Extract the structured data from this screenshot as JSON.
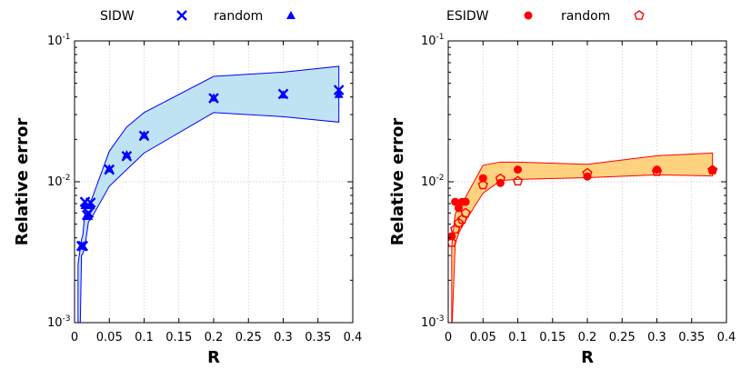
{
  "chart_data": [
    {
      "type": "scatter",
      "xlabel": "R",
      "ylabel": "Relative error",
      "xlim": [
        0,
        0.4
      ],
      "ylim": [
        0.001,
        0.1
      ],
      "yscale": "log",
      "grid": true,
      "legend_position": "top",
      "xticks": [
        "0",
        "0.05",
        "0.1",
        "0.15",
        "0.2",
        "0.25",
        "0.3",
        "0.35",
        "0.4"
      ],
      "yticks": [
        {
          "base": "10",
          "exp": "-3"
        },
        {
          "base": "10",
          "exp": "-2"
        },
        {
          "base": "10",
          "exp": "-1"
        }
      ],
      "colors": {
        "marker": "#0000ff",
        "band_fill": "#bfe3f3",
        "band_line": "#0000ff"
      },
      "series": [
        {
          "name": "SIDW",
          "marker": "x",
          "x": [
            0.01,
            0.012,
            0.015,
            0.018,
            0.02,
            0.023,
            0.05,
            0.075,
            0.1,
            0.2,
            0.3,
            0.38
          ],
          "y": [
            0.0035,
            0.0035,
            0.0072,
            0.0058,
            0.006,
            0.0071,
            0.0122,
            0.0152,
            0.0212,
            0.0392,
            0.042,
            0.0448
          ]
        },
        {
          "name": "random",
          "marker": "triangle",
          "x": [
            0.01,
            0.012,
            0.015,
            0.018,
            0.02,
            0.023,
            0.05,
            0.075,
            0.1,
            0.2,
            0.3,
            0.38
          ],
          "y": [
            0.0035,
            0.0035,
            0.0068,
            0.0057,
            0.0057,
            0.0068,
            0.0124,
            0.0156,
            0.0215,
            0.0395,
            0.0415,
            0.0418
          ]
        }
      ],
      "band": {
        "x": [
          0.005,
          0.008,
          0.01,
          0.012,
          0.015,
          0.02,
          0.025,
          0.05,
          0.075,
          0.1,
          0.2,
          0.3,
          0.38
        ],
        "upper": [
          0.0026,
          0.0033,
          0.0039,
          0.0042,
          0.0062,
          0.0069,
          0.0076,
          0.0165,
          0.0245,
          0.031,
          0.056,
          0.06,
          0.066
        ],
        "lower": [
          0.0008,
          0.00085,
          0.003,
          0.0031,
          0.0035,
          0.0052,
          0.0056,
          0.0093,
          0.0122,
          0.016,
          0.031,
          0.029,
          0.0265
        ]
      }
    },
    {
      "type": "scatter",
      "xlabel": "R",
      "ylabel": "Relative error",
      "xlim": [
        0,
        0.4
      ],
      "ylim": [
        0.001,
        0.1
      ],
      "yscale": "log",
      "grid": true,
      "legend_position": "top",
      "xticks": [
        "0",
        "0.05",
        "0.1",
        "0.15",
        "0.2",
        "0.25",
        "0.3",
        "0.35",
        "0.4"
      ],
      "yticks": [
        {
          "base": "10",
          "exp": "-3"
        },
        {
          "base": "10",
          "exp": "-2"
        },
        {
          "base": "10",
          "exp": "-1"
        }
      ],
      "colors": {
        "marker": "#ff0000",
        "band_fill": "#ffd280",
        "band_line": "#ff0000"
      },
      "series": [
        {
          "name": "ESIDW",
          "marker": "circle",
          "x": [
            0.005,
            0.01,
            0.015,
            0.02,
            0.025,
            0.05,
            0.075,
            0.1,
            0.2,
            0.3,
            0.38
          ],
          "y": [
            0.0041,
            0.0072,
            0.0065,
            0.0072,
            0.0072,
            0.0106,
            0.0098,
            0.0122,
            0.0109,
            0.0122,
            0.0121
          ]
        },
        {
          "name": "random",
          "marker": "pentagon",
          "x": [
            0.005,
            0.01,
            0.015,
            0.02,
            0.025,
            0.05,
            0.075,
            0.1,
            0.2,
            0.3,
            0.38
          ],
          "y": [
            0.0037,
            0.0046,
            0.0051,
            0.0054,
            0.006,
            0.0095,
            0.0105,
            0.0101,
            0.0115,
            0.0118,
            0.0121
          ]
        }
      ],
      "band": {
        "x": [
          0.005,
          0.01,
          0.015,
          0.02,
          0.025,
          0.05,
          0.075,
          0.1,
          0.2,
          0.3,
          0.38
        ],
        "upper": [
          0.0035,
          0.0059,
          0.0066,
          0.0071,
          0.0078,
          0.0131,
          0.0138,
          0.0138,
          0.0133,
          0.0153,
          0.016
        ],
        "lower": [
          0.0008,
          0.0036,
          0.0043,
          0.0048,
          0.0053,
          0.0083,
          0.0102,
          0.0104,
          0.0107,
          0.0112,
          0.011
        ]
      }
    }
  ]
}
